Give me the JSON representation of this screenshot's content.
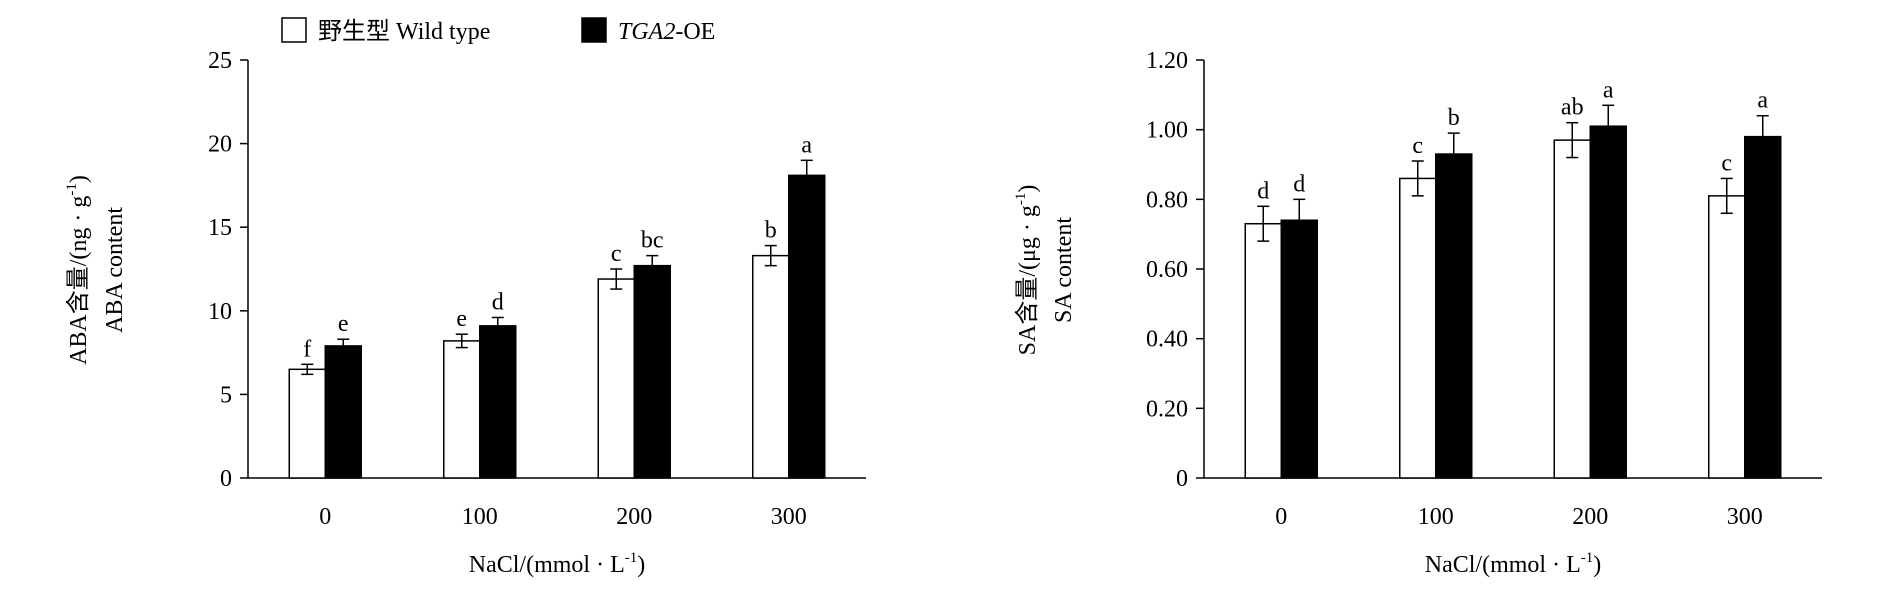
{
  "legend": {
    "items": [
      {
        "label_cn": "野生型",
        "label_en": " Wild type",
        "fill": "#ffffff"
      },
      {
        "label_it": "TGA2",
        "label_rest": "-OE",
        "fill": "#000000"
      }
    ]
  },
  "chart_data": [
    {
      "type": "bar",
      "categories": [
        "0",
        "100",
        "200",
        "300"
      ],
      "xlabel": {
        "main": "NaCl/(mmol · L",
        "sup": "-1",
        "close": ")"
      },
      "ylabel": {
        "line1_main": "ABA含量/(ng · g",
        "line1_sup": "-1",
        "line1_close": ")",
        "line2": "ABA content"
      },
      "ylim": [
        0,
        25
      ],
      "yticks": [
        "0",
        "5",
        "10",
        "15",
        "20",
        "25"
      ],
      "series": [
        {
          "values": [
            6.5,
            8.2,
            11.9,
            13.3
          ],
          "errors": [
            0.3,
            0.4,
            0.6,
            0.6
          ],
          "letters": [
            "f",
            "e",
            "c",
            "b"
          ],
          "fill": "#ffffff"
        },
        {
          "values": [
            7.9,
            9.1,
            12.7,
            18.1
          ],
          "errors": [
            0.4,
            0.5,
            0.6,
            0.9
          ],
          "letters": [
            "e",
            "d",
            "bc",
            "a"
          ],
          "fill": "#000000"
        }
      ]
    },
    {
      "type": "bar",
      "categories": [
        "0",
        "100",
        "200",
        "300"
      ],
      "xlabel": {
        "main": "NaCl/(mmol · L",
        "sup": "-1",
        "close": ")"
      },
      "ylabel": {
        "line1_main": "SA含量/(μg · g",
        "line1_sup": "-1",
        "line1_close": ")",
        "line2": "SA content"
      },
      "ylim": [
        0,
        1.2
      ],
      "yticks": [
        "0",
        "0.20",
        "0.40",
        "0.60",
        "0.80",
        "1.00",
        "1.20"
      ],
      "series": [
        {
          "values": [
            0.73,
            0.86,
            0.97,
            0.81
          ],
          "errors": [
            0.05,
            0.05,
            0.05,
            0.05
          ],
          "letters": [
            "d",
            "c",
            "ab",
            "c"
          ],
          "fill": "#ffffff"
        },
        {
          "values": [
            0.74,
            0.93,
            1.01,
            0.98
          ],
          "errors": [
            0.06,
            0.06,
            0.06,
            0.06
          ],
          "letters": [
            "d",
            "b",
            "a",
            "a"
          ],
          "fill": "#000000"
        }
      ]
    }
  ]
}
